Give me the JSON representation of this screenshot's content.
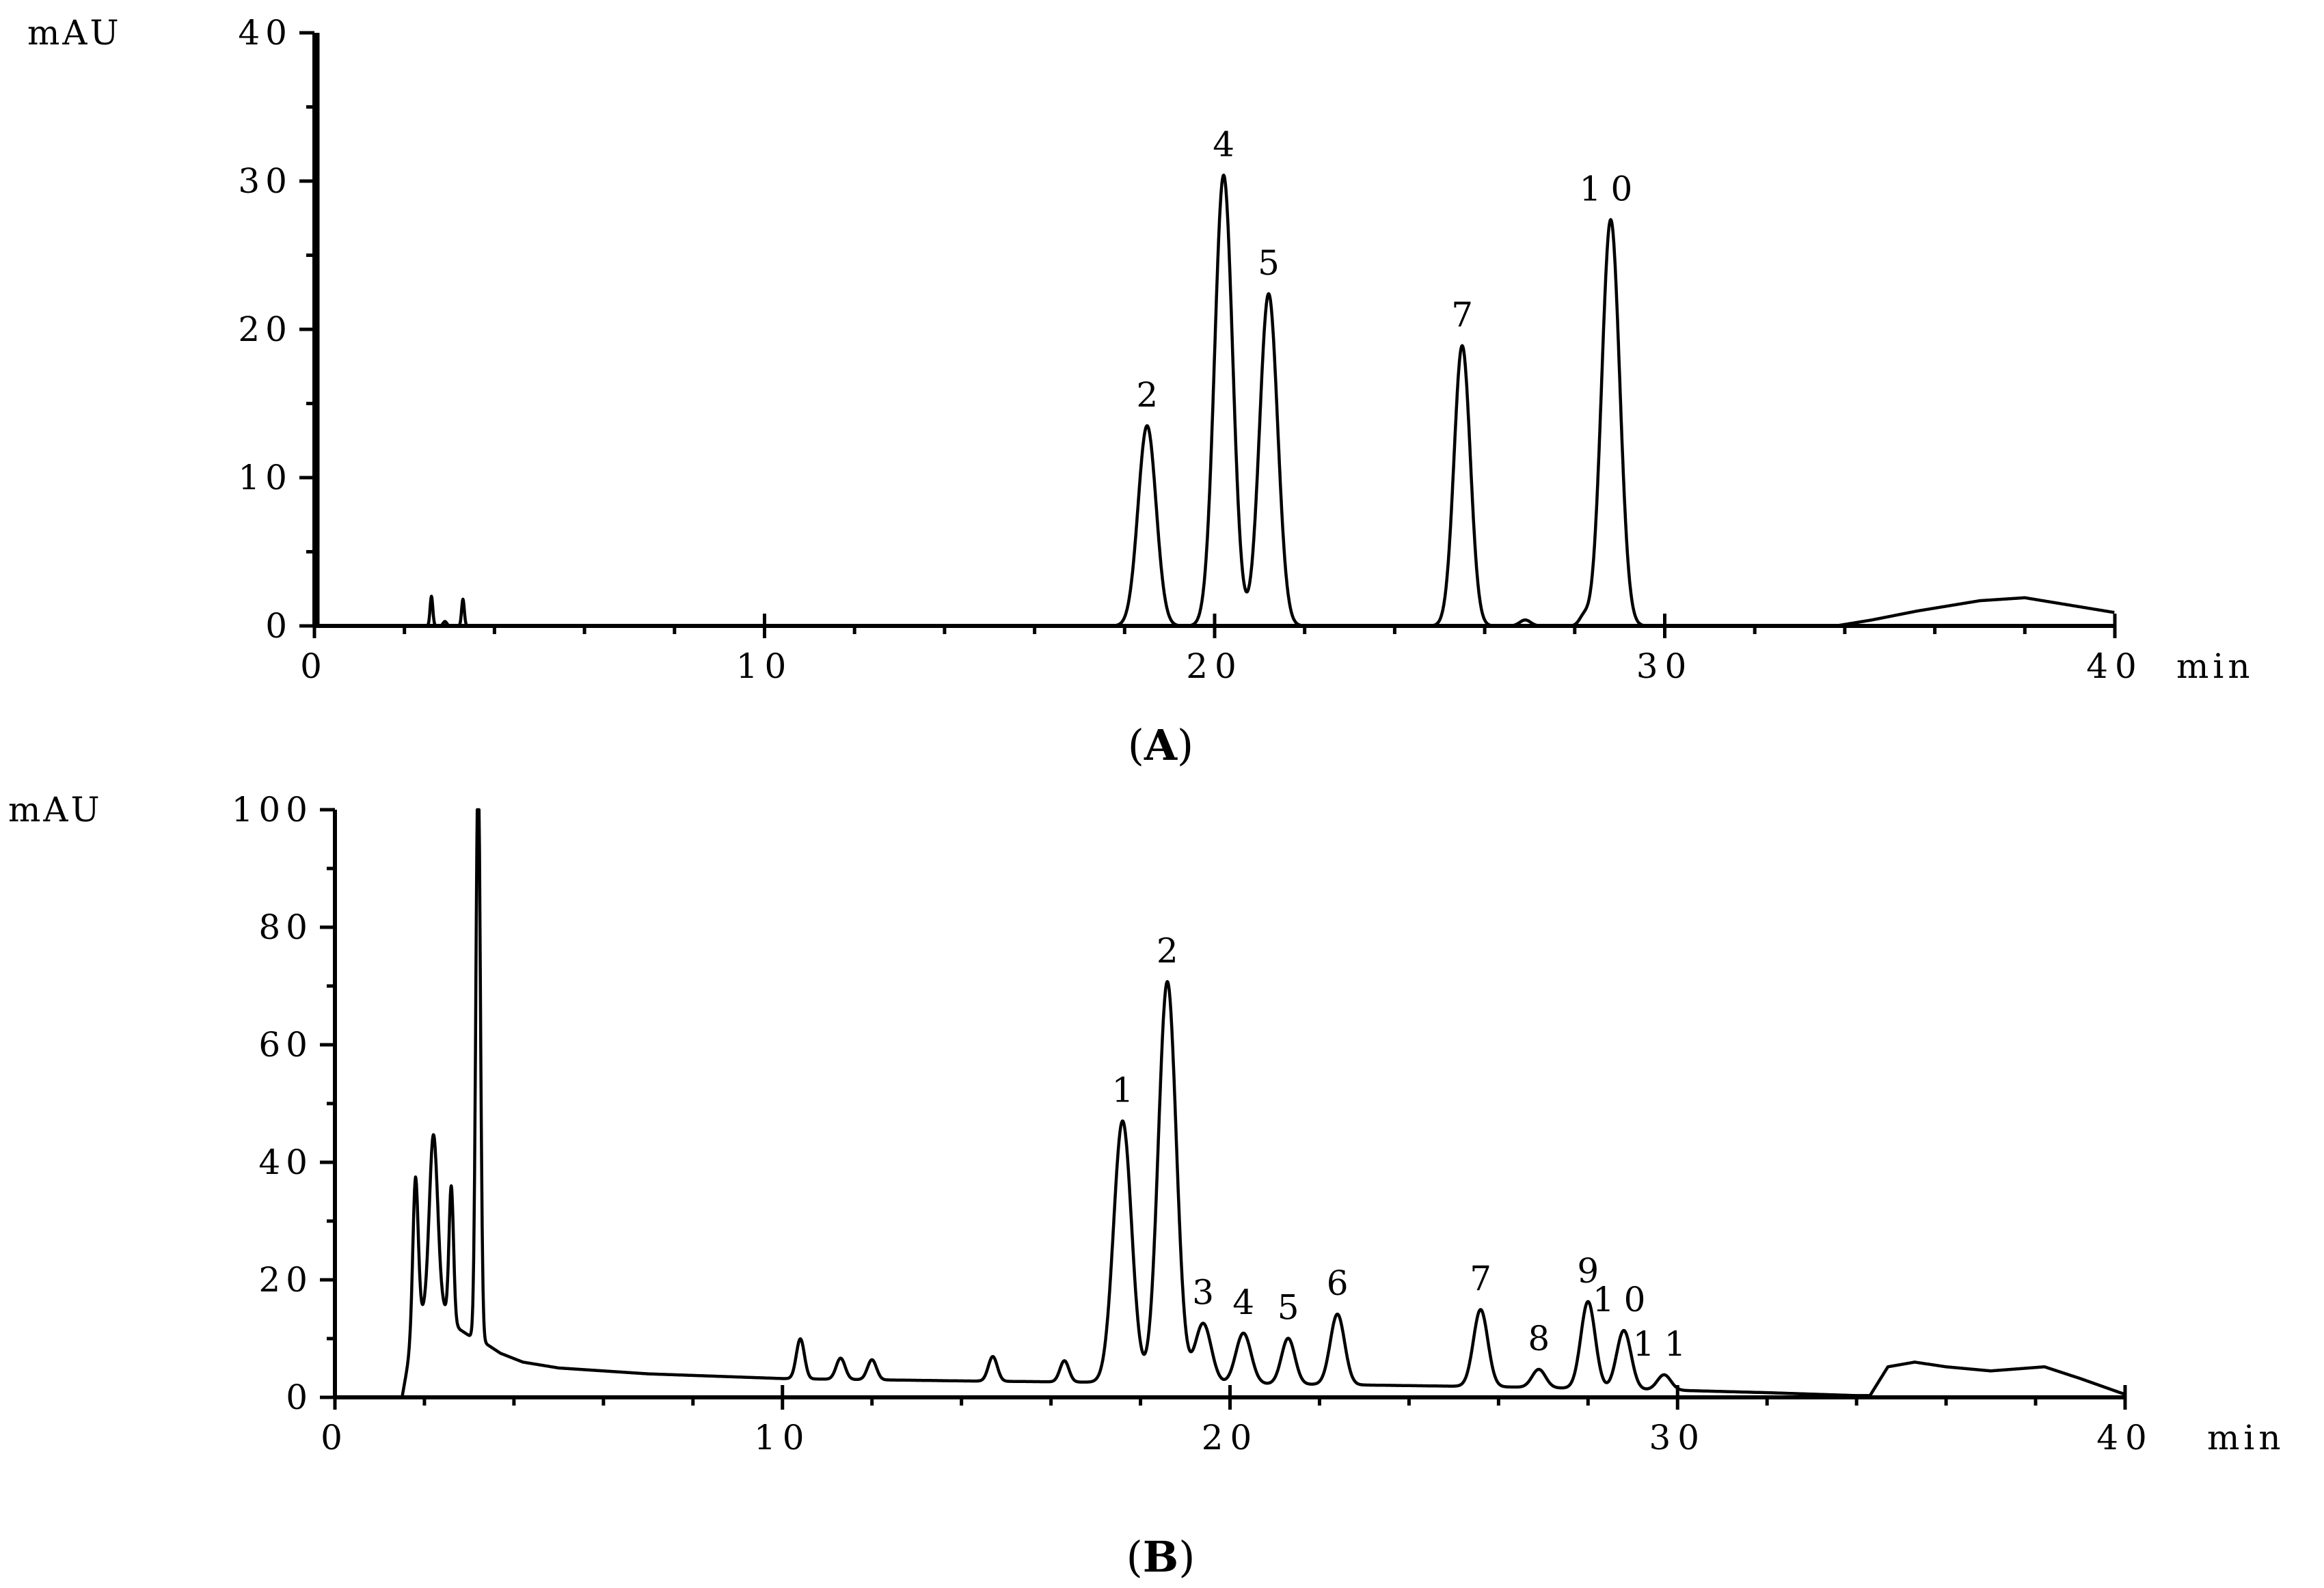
{
  "chart_data": [
    {
      "type": "line",
      "panel_label": "A",
      "xlabel": "min",
      "ylabel": "mAU",
      "xlim": [
        0,
        40
      ],
      "ylim": [
        0,
        40
      ],
      "x_ticks": [
        "0",
        "10",
        "20",
        "30",
        "40"
      ],
      "y_ticks": [
        "0",
        "10",
        "20",
        "30",
        "40"
      ],
      "grid": false,
      "baseline": 0,
      "peaks": [
        {
          "label": "2",
          "x": 18.5,
          "y": 13.5,
          "width": 0.2
        },
        {
          "label": "4",
          "x": 20.2,
          "y": 30.4,
          "width": 0.2
        },
        {
          "label": "5",
          "x": 21.2,
          "y": 22.4,
          "width": 0.2
        },
        {
          "label": "7",
          "x": 25.5,
          "y": 18.9,
          "width": 0.18
        },
        {
          "label": "10",
          "x": 28.8,
          "y": 27.4,
          "width": 0.2
        }
      ],
      "minor_peaks": [
        {
          "x": 2.6,
          "y": 2.0,
          "width": 0.03
        },
        {
          "x": 2.9,
          "y": 0.3,
          "width": 0.04
        },
        {
          "x": 3.3,
          "y": 1.8,
          "width": 0.03
        },
        {
          "x": 26.9,
          "y": 0.4,
          "width": 0.12
        },
        {
          "x": 28.2,
          "y": 0.6,
          "width": 0.1
        }
      ],
      "drift": [
        [
          0,
          0
        ],
        [
          33.8,
          0
        ],
        [
          34.6,
          0.4
        ],
        [
          35.6,
          1.0
        ],
        [
          37.0,
          1.7
        ],
        [
          38.0,
          1.9
        ],
        [
          39.0,
          1.4
        ],
        [
          40.0,
          0.9
        ]
      ],
      "injection_spike": {
        "x": 0,
        "y": 40
      }
    },
    {
      "type": "line",
      "panel_label": "B",
      "xlabel": "min",
      "ylabel": "mAU",
      "xlim": [
        0,
        40
      ],
      "ylim": [
        0,
        100
      ],
      "x_ticks": [
        "0",
        "10",
        "20",
        "30",
        "40"
      ],
      "y_ticks": [
        "0",
        "20",
        "40",
        "60",
        "80",
        "100"
      ],
      "grid": false,
      "baseline_points": [
        [
          0,
          0
        ],
        [
          1.5,
          0
        ],
        [
          1.8,
          13
        ],
        [
          2.3,
          17
        ],
        [
          2.6,
          13
        ],
        [
          2.8,
          11.5
        ],
        [
          3.0,
          10.5
        ],
        [
          3.3,
          9.5
        ],
        [
          3.7,
          7.5
        ],
        [
          4.2,
          6
        ],
        [
          5,
          5
        ],
        [
          7,
          4
        ],
        [
          10,
          3.2
        ],
        [
          14,
          2.8
        ],
        [
          18,
          2.5
        ],
        [
          22,
          2.2
        ],
        [
          26,
          1.8
        ],
        [
          30,
          1.2
        ],
        [
          32,
          0.8
        ],
        [
          34,
          0.3
        ],
        [
          34.3,
          0.3
        ],
        [
          34.7,
          5.2
        ],
        [
          35.3,
          6
        ],
        [
          36,
          5.2
        ],
        [
          37,
          4.5
        ],
        [
          38.2,
          5.2
        ],
        [
          39,
          3.2
        ],
        [
          40,
          0.5
        ]
      ],
      "peaks": [
        {
          "label": "1",
          "x": 17.6,
          "y": 44.5,
          "width": 0.2
        },
        {
          "label": "2",
          "x": 18.6,
          "y": 68.3,
          "width": 0.2
        },
        {
          "label": "3",
          "x": 19.4,
          "y": 10.2,
          "width": 0.18
        },
        {
          "label": "4",
          "x": 20.3,
          "y": 8.6,
          "width": 0.17
        },
        {
          "label": "5",
          "x": 21.3,
          "y": 7.8,
          "width": 0.15
        },
        {
          "label": "6",
          "x": 22.4,
          "y": 12.0,
          "width": 0.16
        },
        {
          "label": "7",
          "x": 25.6,
          "y": 13.1,
          "width": 0.16
        },
        {
          "label": "8",
          "x": 26.9,
          "y": 3.1,
          "width": 0.15
        },
        {
          "label": "9",
          "x": 28.0,
          "y": 14.8,
          "width": 0.16
        },
        {
          "label": "10",
          "x": 28.8,
          "y": 10.0,
          "width": 0.16
        },
        {
          "label": "11",
          "x": 29.7,
          "y": 2.6,
          "width": 0.15
        }
      ],
      "minor_peaks": [
        {
          "x": 1.8,
          "y": 24.5,
          "width": 0.06
        },
        {
          "x": 2.2,
          "y": 28.5,
          "width": 0.09
        },
        {
          "x": 2.6,
          "y": 23,
          "width": 0.05
        },
        {
          "x": 3.2,
          "y": 100,
          "width": 0.05
        },
        {
          "x": 10.4,
          "y": 6.8,
          "width": 0.09
        },
        {
          "x": 11.3,
          "y": 3.6,
          "width": 0.1
        },
        {
          "x": 12.0,
          "y": 3.4,
          "width": 0.1
        },
        {
          "x": 14.7,
          "y": 4.2,
          "width": 0.1
        },
        {
          "x": 16.3,
          "y": 3.6,
          "width": 0.1
        }
      ]
    }
  ]
}
